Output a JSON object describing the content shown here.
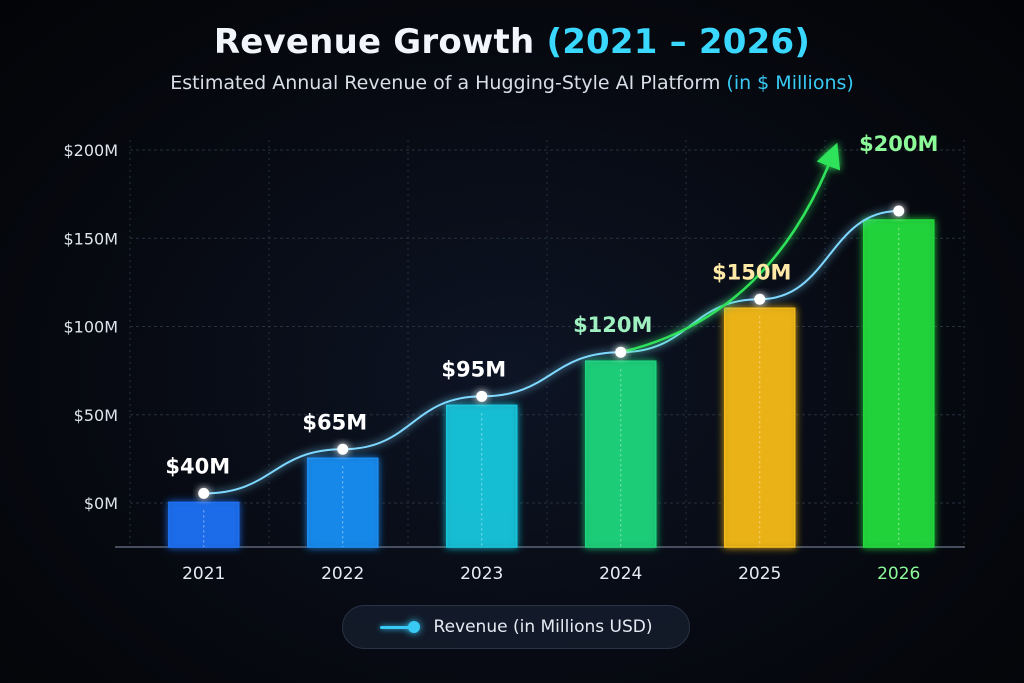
{
  "header": {
    "title_main": "Revenue Growth",
    "title_accent": "(2021 – 2026)",
    "subtitle_main": "Estimated Annual Revenue of a Hugging-Style AI Platform",
    "subtitle_accent": "(in $ Millions)"
  },
  "legend": {
    "label": "Revenue (in Millions USD)"
  },
  "colors": {
    "bars": [
      "#1f6ff2",
      "#1a8cf0",
      "#19c3d9",
      "#1fd27a",
      "#f2b817",
      "#22d93c"
    ],
    "labels": [
      "#ffffff",
      "#ffffff",
      "#ffffff",
      "#9ff0c0",
      "#ffe9a6",
      "#8dfa9a"
    ],
    "line": "#7fd8ff",
    "trend_arrow": "#2ee35a",
    "grid": "#27303f"
  },
  "chart_data": {
    "type": "bar",
    "categories": [
      "2021",
      "2022",
      "2023",
      "2024",
      "2025",
      "2026"
    ],
    "series": [
      {
        "values": [
          40,
          65,
          95,
          120,
          150,
          200
        ]
      }
    ],
    "value_labels": [
      "$40M",
      "$65M",
      "$95M",
      "$120M",
      "$150M",
      "$200M"
    ],
    "y_ticks": [
      "$0M",
      "$50M",
      "$100M",
      "$150M",
      "$200M"
    ],
    "ylim": [
      0,
      200
    ],
    "overlay": "line with markers",
    "grid": true,
    "legend_position": "bottom-center"
  }
}
